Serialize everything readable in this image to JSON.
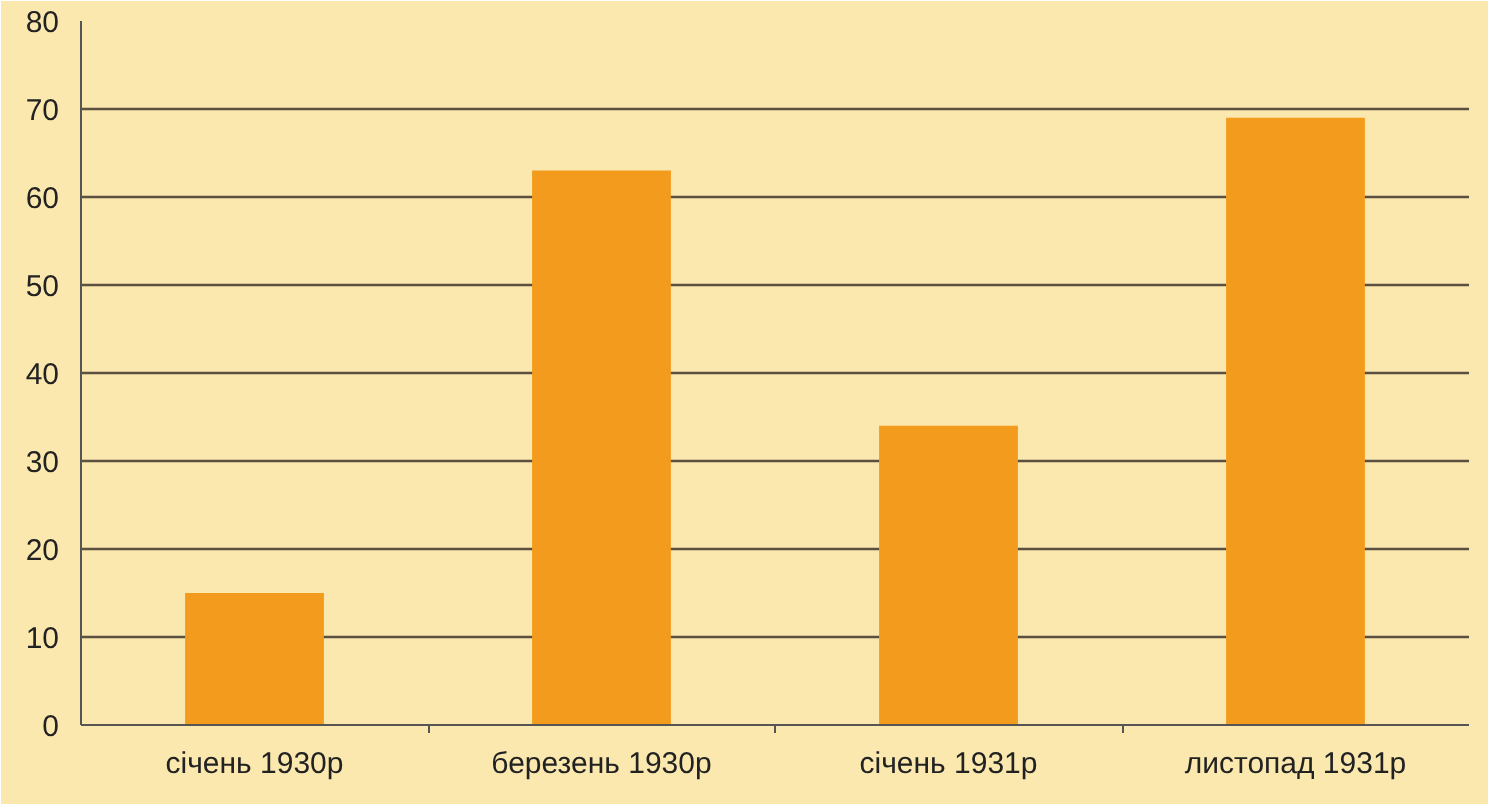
{
  "chart_data": {
    "type": "bar",
    "categories": [
      "січень 1930р",
      "березень 1930р",
      "січень 1931р",
      "листопад 1931р"
    ],
    "values": [
      15,
      63,
      34,
      69
    ],
    "color": "#f29b1c",
    "ylim": [
      0,
      80
    ],
    "yticks": [
      0,
      10,
      20,
      30,
      40,
      50,
      60,
      70,
      80
    ],
    "grid": "y"
  }
}
